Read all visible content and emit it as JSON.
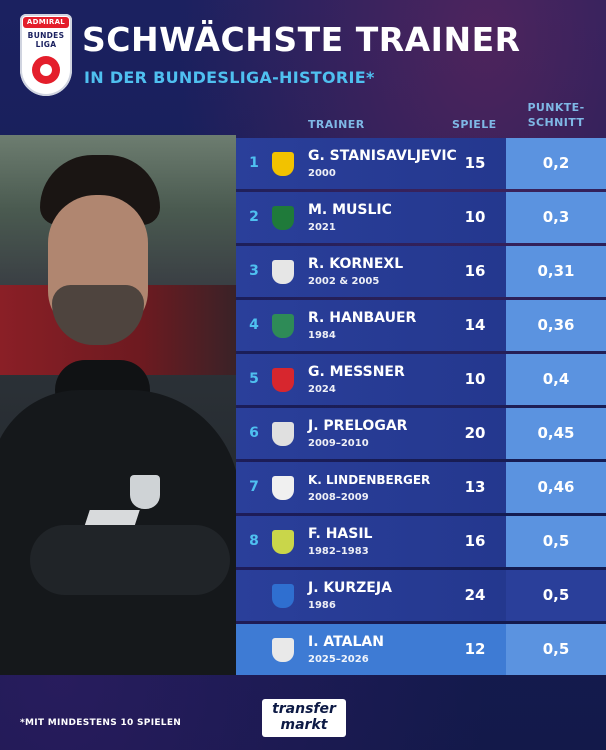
{
  "header": {
    "logo_top": "ADMIRAL",
    "logo_line1": "BUNDES",
    "logo_line2": "LIGA",
    "title": "SCHWÄCHSTE TRAINER",
    "subtitle": "IN DER BUNDESLIGA-HISTORIE*"
  },
  "columns": {
    "trainer": "TRAINER",
    "spiele": "SPIELE",
    "punkte_line1": "PUNKTE-",
    "punkte_line2": "SCHNITT"
  },
  "rows": [
    {
      "rank": "1",
      "name": "G. STANISAVLJEVIC",
      "years": "2000",
      "games": "15",
      "avg": "0,2",
      "crest_color": "#f2c200",
      "crest_icon": "club-crest-icon",
      "avg_style": "light"
    },
    {
      "rank": "2",
      "name": "M. MUSLIC",
      "years": "2021",
      "games": "10",
      "avg": "0,3",
      "crest_color": "#1f7a3a",
      "crest_icon": "club-crest-icon",
      "avg_style": "light"
    },
    {
      "rank": "3",
      "name": "R. KORNEXL",
      "years": "2002 & 2005",
      "games": "16",
      "avg": "0,31",
      "crest_color": "#e6e6e6",
      "crest_icon": "club-crest-icon",
      "avg_style": "light"
    },
    {
      "rank": "4",
      "name": "R. HANBAUER",
      "years": "1984",
      "games": "14",
      "avg": "0,36",
      "crest_color": "#2e8b57",
      "crest_icon": "club-crest-icon",
      "avg_style": "light"
    },
    {
      "rank": "5",
      "name": "G. MESSNER",
      "years": "2024",
      "games": "10",
      "avg": "0,4",
      "crest_color": "#d7262e",
      "crest_icon": "club-crest-icon",
      "avg_style": "light"
    },
    {
      "rank": "6",
      "name": "J. PRELOGAR",
      "years": "2009–2010",
      "games": "20",
      "avg": "0,45",
      "crest_color": "#e0e0e0",
      "crest_icon": "club-crest-icon",
      "avg_style": "light"
    },
    {
      "rank": "7",
      "name": "K. LINDENBERGER",
      "years": "2008–2009",
      "games": "13",
      "avg": "0,46",
      "crest_color": "#f0f0f0",
      "crest_icon": "club-crest-icon",
      "avg_style": "light"
    },
    {
      "rank": "8",
      "name": "F. HASIL",
      "years": "1982–1983",
      "games": "16",
      "avg": "0,5",
      "crest_color": "#c9d64a",
      "crest_icon": "club-crest-icon",
      "avg_style": "light"
    },
    {
      "rank": "",
      "name": "J. KURZEJA",
      "years": "1986",
      "games": "24",
      "avg": "0,5",
      "crest_color": "#2f6fd0",
      "crest_icon": "club-crest-icon",
      "avg_style": "dark"
    },
    {
      "rank": "",
      "name": "I. ATALAN",
      "years": "2025–2026",
      "games": "12",
      "avg": "0,5",
      "crest_color": "#e9e9e9",
      "crest_icon": "club-crest-icon",
      "avg_style": "light",
      "highlight": true
    }
  ],
  "footer": {
    "note": "*MIT MINDESTENS 10 SPIELEN",
    "brand_line1": "transfer",
    "brand_line2": "markt"
  }
}
